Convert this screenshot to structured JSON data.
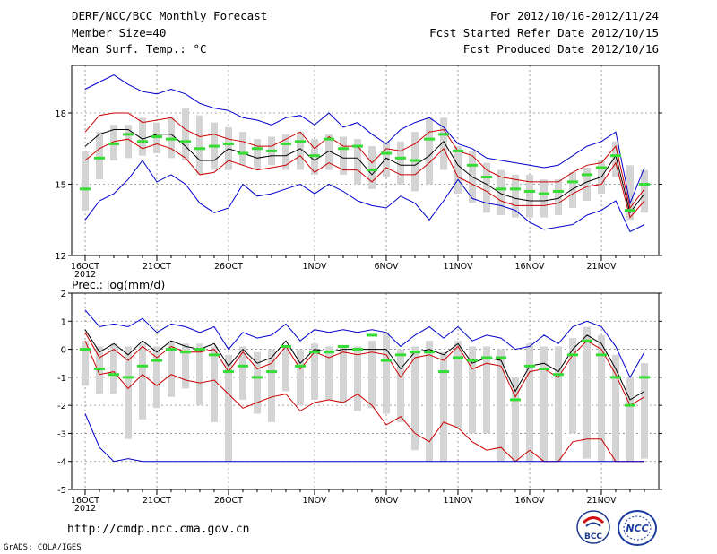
{
  "header": {
    "title": "DERF/NCC/BCC Monthly Forecast",
    "member": "Member Size=40",
    "variable": "Mean Surf. Temp.: °C",
    "period": "For 2012/10/16-2012/11/24",
    "start": "Fcst Started Refer Date 2012/10/15",
    "produced": "Fcst Produced Date 2012/10/16"
  },
  "footer": {
    "url": "http://cmdp.ncc.cma.gov.cn",
    "grads": "GrADS: COLA/IGES"
  },
  "logos": {
    "bcc": "BCC",
    "ncc": "NCC"
  },
  "colors": {
    "blue": "#0000cc",
    "red": "#cc0000",
    "black": "#000000",
    "box": "#d4d4d4",
    "green": "#33dd33"
  },
  "chart_data": [
    {
      "type": "line",
      "title": "Mean Surf. Temp.: °C",
      "xlabel": "",
      "ylabel": "°C",
      "x_tick_labels": [
        "16OCT",
        "21OCT",
        "26OCT",
        "1NOV",
        "6NOV",
        "11NOV",
        "16NOV",
        "21NOV"
      ],
      "x_tick_days": [
        1,
        6,
        11,
        17,
        22,
        27,
        32,
        37
      ],
      "year_label": "2012",
      "y_ticks": [
        12,
        15,
        18
      ],
      "ylim": [
        12,
        20
      ],
      "days": [
        1,
        2,
        3,
        4,
        5,
        6,
        7,
        8,
        9,
        10,
        11,
        12,
        13,
        14,
        15,
        16,
        17,
        18,
        19,
        20,
        21,
        22,
        23,
        24,
        25,
        26,
        27,
        28,
        29,
        30,
        31,
        32,
        33,
        34,
        35,
        36,
        37,
        38,
        39,
        40
      ],
      "series": [
        {
          "name": "max",
          "color": "blue",
          "values": [
            19.0,
            19.3,
            19.6,
            19.2,
            18.9,
            18.8,
            19.0,
            18.8,
            18.4,
            18.2,
            18.1,
            17.8,
            17.7,
            17.5,
            17.8,
            17.9,
            17.5,
            18.0,
            17.4,
            17.6,
            17.1,
            16.7,
            17.3,
            17.6,
            17.8,
            17.4,
            16.7,
            16.5,
            16.1,
            16.0,
            15.9,
            15.8,
            15.7,
            15.8,
            16.2,
            16.6,
            16.8,
            17.2,
            14.2,
            15.7
          ]
        },
        {
          "name": "upper",
          "color": "red",
          "values": [
            17.2,
            17.9,
            18.0,
            18.0,
            17.6,
            17.7,
            17.8,
            17.3,
            17.0,
            17.1,
            16.9,
            16.8,
            16.6,
            16.6,
            16.9,
            17.2,
            16.5,
            17.0,
            16.6,
            16.6,
            15.9,
            16.5,
            16.4,
            16.7,
            17.2,
            17.3,
            16.4,
            16.2,
            15.6,
            15.3,
            15.2,
            15.1,
            15.1,
            15.1,
            15.5,
            15.8,
            15.9,
            16.6,
            14.0,
            14.8
          ]
        },
        {
          "name": "mean",
          "color": "black",
          "values": [
            16.6,
            17.1,
            17.3,
            17.3,
            16.9,
            17.1,
            17.1,
            16.6,
            16.0,
            16.0,
            16.5,
            16.3,
            16.1,
            16.2,
            16.2,
            16.5,
            16.0,
            16.4,
            16.1,
            16.1,
            15.4,
            16.1,
            15.8,
            15.8,
            16.2,
            16.8,
            15.8,
            15.3,
            15.0,
            14.6,
            14.4,
            14.3,
            14.3,
            14.4,
            14.8,
            15.1,
            15.3,
            16.2,
            13.8,
            14.6
          ]
        },
        {
          "name": "lower",
          "color": "red",
          "values": [
            16.0,
            16.5,
            16.8,
            16.9,
            16.5,
            16.7,
            16.5,
            16.1,
            15.4,
            15.5,
            16.0,
            15.8,
            15.6,
            15.7,
            15.8,
            16.2,
            15.5,
            15.9,
            15.6,
            15.6,
            15.1,
            15.7,
            15.4,
            15.4,
            15.9,
            16.5,
            15.3,
            15.0,
            14.7,
            14.3,
            14.1,
            14.1,
            14.1,
            14.2,
            14.6,
            14.9,
            15.0,
            15.9,
            13.6,
            14.3
          ]
        },
        {
          "name": "min",
          "color": "blue",
          "values": [
            13.5,
            14.3,
            14.6,
            15.2,
            16.0,
            15.1,
            15.4,
            15.0,
            14.2,
            13.8,
            14.0,
            15.0,
            14.5,
            14.6,
            14.8,
            15.0,
            14.6,
            15.0,
            14.7,
            14.3,
            14.1,
            14.0,
            14.5,
            14.2,
            13.5,
            14.3,
            15.2,
            14.4,
            14.2,
            14.1,
            13.9,
            13.4,
            13.1,
            13.2,
            13.3,
            13.7,
            13.9,
            14.3,
            13.0,
            13.3
          ]
        }
      ],
      "boxes": {
        "top": [
          16.4,
          17.2,
          17.5,
          17.5,
          17.8,
          17.6,
          17.8,
          18.2,
          17.9,
          17.6,
          17.4,
          17.2,
          16.9,
          17.0,
          17.1,
          17.2,
          16.9,
          17.1,
          17.0,
          16.9,
          16.6,
          16.8,
          16.8,
          17.2,
          17.8,
          17.8,
          16.6,
          16.4,
          15.9,
          15.6,
          15.4,
          15.4,
          15.2,
          15.2,
          15.5,
          15.7,
          16.0,
          16.8,
          15.8,
          15.6
        ],
        "bottom": [
          13.9,
          15.2,
          16.0,
          16.1,
          16.2,
          16.3,
          16.1,
          16.0,
          15.4,
          15.6,
          15.6,
          15.8,
          15.6,
          15.8,
          15.6,
          15.6,
          15.4,
          15.6,
          15.4,
          15.0,
          14.8,
          15.3,
          15.0,
          14.7,
          15.0,
          15.6,
          14.6,
          14.2,
          13.8,
          13.7,
          13.6,
          13.6,
          13.6,
          13.7,
          14.0,
          14.3,
          14.6,
          15.3,
          13.5,
          13.8
        ]
      },
      "markers": [
        14.8,
        16.1,
        16.7,
        17.1,
        16.8,
        17.0,
        16.9,
        16.8,
        16.5,
        16.6,
        16.7,
        16.3,
        16.5,
        16.4,
        16.7,
        16.8,
        16.2,
        16.9,
        16.5,
        16.6,
        15.6,
        16.3,
        16.1,
        16.0,
        16.9,
        17.1,
        16.4,
        15.8,
        15.3,
        14.8,
        14.8,
        14.7,
        14.6,
        14.7,
        15.1,
        15.4,
        15.7,
        16.2,
        13.9,
        15.0
      ]
    },
    {
      "type": "line",
      "title": "Prec.: log(mm/d)",
      "xlabel": "",
      "ylabel": "log(mm/d)",
      "x_tick_labels": [
        "16OCT",
        "21OCT",
        "26OCT",
        "1NOV",
        "6NOV",
        "11NOV",
        "16NOV",
        "21NOV"
      ],
      "x_tick_days": [
        1,
        6,
        11,
        17,
        22,
        27,
        32,
        37
      ],
      "year_label": "2012",
      "y_ticks": [
        -5,
        -4,
        -3,
        -2,
        -1,
        0,
        1,
        2
      ],
      "ylim": [
        -5,
        2
      ],
      "days": [
        1,
        2,
        3,
        4,
        5,
        6,
        7,
        8,
        9,
        10,
        11,
        12,
        13,
        14,
        15,
        16,
        17,
        18,
        19,
        20,
        21,
        22,
        23,
        24,
        25,
        26,
        27,
        28,
        29,
        30,
        31,
        32,
        33,
        34,
        35,
        36,
        37,
        38,
        39,
        40
      ],
      "series": [
        {
          "name": "max",
          "color": "blue",
          "values": [
            1.4,
            0.8,
            0.9,
            0.8,
            1.1,
            0.6,
            0.9,
            0.8,
            0.6,
            0.8,
            0.0,
            0.6,
            0.4,
            0.5,
            0.9,
            0.3,
            0.7,
            0.6,
            0.7,
            0.6,
            0.7,
            0.6,
            0.1,
            0.5,
            0.8,
            0.4,
            0.8,
            0.3,
            0.5,
            0.4,
            0.0,
            0.1,
            0.5,
            0.2,
            0.8,
            1.0,
            0.8,
            0.1,
            -1.0,
            -0.1
          ]
        },
        {
          "name": "upper",
          "color": "black",
          "values": [
            0.7,
            -0.1,
            0.2,
            -0.2,
            0.3,
            -0.1,
            0.3,
            0.1,
            0.0,
            0.2,
            -0.6,
            0.0,
            -0.5,
            -0.3,
            0.3,
            -0.5,
            0.0,
            -0.1,
            0.0,
            0.0,
            0.0,
            0.0,
            -0.7,
            -0.1,
            0.0,
            -0.2,
            0.2,
            -0.5,
            -0.3,
            -0.4,
            -1.5,
            -0.6,
            -0.5,
            -0.8,
            0.0,
            0.5,
            0.2,
            -0.7,
            -1.8,
            -1.5
          ]
        },
        {
          "name": "mean",
          "color": "red",
          "values": [
            0.6,
            -0.3,
            0.0,
            -0.4,
            0.1,
            -0.3,
            0.1,
            -0.1,
            -0.1,
            0.0,
            -0.8,
            -0.1,
            -0.7,
            -0.5,
            0.1,
            -0.7,
            -0.1,
            -0.3,
            -0.1,
            -0.2,
            -0.1,
            -0.2,
            -1.0,
            -0.3,
            -0.2,
            -0.4,
            0.1,
            -0.7,
            -0.5,
            -0.6,
            -1.7,
            -0.8,
            -0.7,
            -1.0,
            -0.2,
            0.3,
            0.0,
            -0.9,
            -2.0,
            -1.7
          ]
        },
        {
          "name": "lower",
          "color": "red",
          "values": [
            0.3,
            -0.9,
            -0.8,
            -1.4,
            -0.9,
            -1.3,
            -0.9,
            -1.1,
            -1.2,
            -1.1,
            -1.6,
            -2.1,
            -1.9,
            -1.7,
            -1.6,
            -2.2,
            -1.9,
            -1.8,
            -1.9,
            -1.6,
            -2.0,
            -2.7,
            -2.4,
            -3.0,
            -3.3,
            -2.6,
            -2.8,
            -3.3,
            -3.6,
            -3.5,
            -4.0,
            -3.6,
            -4.0,
            -4.0,
            -3.3,
            -3.2,
            -3.2,
            -4.0,
            -4.0,
            -4.0
          ]
        },
        {
          "name": "min",
          "color": "blue",
          "values": [
            -2.3,
            -3.5,
            -4.0,
            -3.9,
            -4.0,
            -4.0,
            -4.0,
            -4.0,
            -4.0,
            -4.0,
            -4.0,
            -4.0,
            -4.0,
            -4.0,
            -4.0,
            -4.0,
            -4.0,
            -4.0,
            -4.0,
            -4.0,
            -4.0,
            -4.0,
            -4.0,
            -4.0,
            -4.0,
            -4.0,
            -4.0,
            -4.0,
            -4.0,
            -4.0,
            -4.0,
            -4.0,
            -4.0,
            -4.0,
            -4.0,
            -4.0,
            -4.0,
            -4.0,
            -4.0,
            -4.0
          ]
        }
      ],
      "boxes": {
        "top": [
          0.3,
          0.1,
          0.2,
          0.1,
          0.2,
          0.1,
          0.3,
          0.2,
          0.2,
          0.1,
          -0.2,
          0.1,
          -0.1,
          0.0,
          0.1,
          0.0,
          0.2,
          0.1,
          0.1,
          0.1,
          0.3,
          0.6,
          0.0,
          0.1,
          0.3,
          -0.1,
          0.3,
          0.1,
          0.1,
          0.0,
          -1.0,
          0.2,
          0.1,
          0.1,
          0.4,
          0.8,
          0.5,
          -0.2,
          -1.0,
          -0.5
        ],
        "bottom": [
          -1.3,
          -1.6,
          -1.6,
          -3.2,
          -2.5,
          -2.1,
          -1.7,
          -1.4,
          -2.0,
          -2.6,
          -4.0,
          -1.8,
          -2.3,
          -2.6,
          -1.5,
          -2.0,
          -1.8,
          -1.8,
          -1.9,
          -2.2,
          -2.1,
          -2.3,
          -2.6,
          -3.6,
          -4.0,
          -4.0,
          -2.8,
          -3.0,
          -3.0,
          -4.0,
          -4.0,
          -4.0,
          -4.0,
          -4.0,
          -3.0,
          -3.9,
          -4.0,
          -4.0,
          -4.0,
          -3.9
        ]
      },
      "markers": [
        0.0,
        -0.7,
        -0.9,
        -1.0,
        -0.6,
        -0.4,
        0.0,
        -0.1,
        0.0,
        -0.2,
        -0.8,
        -0.6,
        -1.0,
        -0.8,
        0.1,
        -0.6,
        -0.1,
        -0.1,
        0.1,
        0.0,
        0.5,
        -0.4,
        -0.2,
        -0.1,
        -0.1,
        -0.8,
        -0.3,
        -0.4,
        -0.3,
        -0.3,
        -1.8,
        -0.6,
        -0.7,
        -0.9,
        -0.2,
        0.3,
        -0.2,
        -1.0,
        -2.0,
        -1.0
      ]
    }
  ]
}
